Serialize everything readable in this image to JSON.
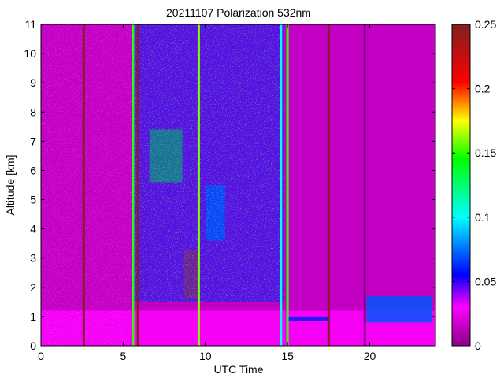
{
  "chart_data": {
    "type": "heatmap",
    "title": "20211107 Polarization 532nm",
    "xlabel": "UTC Time",
    "ylabel": "Altitude [km]",
    "xlim": [
      0,
      24
    ],
    "ylim": [
      0,
      11
    ],
    "x_ticks": [
      0,
      5,
      10,
      15,
      20
    ],
    "y_ticks": [
      0,
      1,
      2,
      3,
      4,
      5,
      6,
      7,
      8,
      9,
      10,
      11
    ],
    "colorbar": {
      "range": [
        0,
        0.25
      ],
      "ticks": [
        0,
        0.05,
        0.1,
        0.15,
        0.2,
        0.25
      ],
      "tick_labels": [
        "0",
        "0.05",
        "0.1",
        "0.15",
        "0.2",
        "0.25"
      ],
      "colormap": [
        "#880088",
        "#ff00ff",
        "#0000ff",
        "#00ffff",
        "#00ff00",
        "#ffff00",
        "#ff0000",
        "#802020"
      ]
    },
    "background_value": 0.015,
    "features": [
      {
        "name": "boundary-layer",
        "x": [
          0,
          24
        ],
        "y": [
          0,
          1.2
        ],
        "value": 0.03
      },
      {
        "name": "aerosol-plume-upper",
        "x": [
          6.6,
          8.6
        ],
        "y": [
          5.6,
          7.4
        ],
        "value": 0.15
      },
      {
        "name": "aerosol-plume-lower",
        "x": [
          8.7,
          9.6
        ],
        "y": [
          1.6,
          3.3
        ],
        "value": 0.2
      },
      {
        "name": "aerosol-plume-mid",
        "x": [
          10.0,
          11.2
        ],
        "y": [
          3.6,
          5.5
        ],
        "value": 0.08
      },
      {
        "name": "noisy-segment",
        "x": [
          5.5,
          14.8
        ],
        "y": [
          1.5,
          11
        ],
        "value": 0.06
      },
      {
        "name": "cloud-layer",
        "x": [
          15.0,
          17.5
        ],
        "y": [
          0.85,
          1.0
        ],
        "value": 0.06
      },
      {
        "name": "cloud-layer-late",
        "x": [
          19.8,
          23.8
        ],
        "y": [
          0.8,
          1.7
        ],
        "value": 0.07
      }
    ],
    "vertical_stripes": [
      {
        "x": 2.6,
        "value": 0.25
      },
      {
        "x": 5.6,
        "value": 0.15
      },
      {
        "x": 5.9,
        "value": 0.25
      },
      {
        "x": 9.6,
        "value": 0.16
      },
      {
        "x": 14.6,
        "value": 0.1
      },
      {
        "x": 15.0,
        "value": 0.15
      },
      {
        "x": 17.5,
        "value": 0.25
      },
      {
        "x": 19.7,
        "value": 0.0
      }
    ]
  }
}
